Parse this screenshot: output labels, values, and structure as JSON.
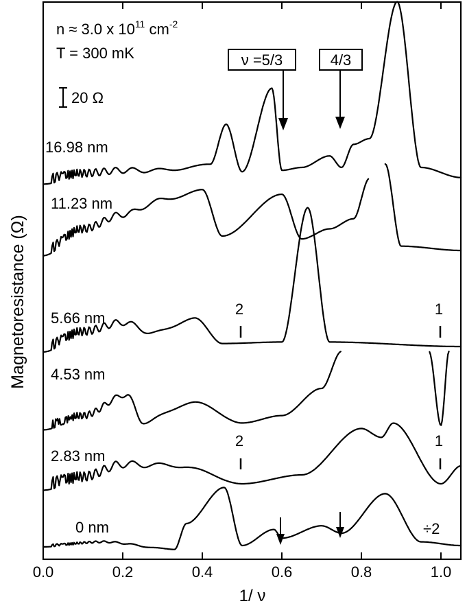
{
  "chart_data": {
    "type": "line",
    "xlabel": "1/ ν",
    "ylabel": "Magnetoresistance (Ω)",
    "xlim": [
      0.0,
      1.05
    ],
    "xticks": [
      "0.0",
      "0.2",
      "0.4",
      "0.6",
      "0.8",
      "1.0"
    ],
    "xtick_values": [
      0.0,
      0.2,
      0.4,
      0.6,
      0.8,
      1.0
    ],
    "annotations": {
      "density": "n ≈ 3.0 x 10",
      "density_exp": "11",
      "density_unit": " cm",
      "density_unit_exp": "-2",
      "temperature": "T = 300 mK",
      "scale_bar": "20 Ω",
      "nu53_box": "ν =5/3",
      "nu43_box": "4/3",
      "nu2_label": "2",
      "nu1_label": "1",
      "divide": "÷2"
    },
    "series": [
      {
        "name": "16.98 nm",
        "description": "offset trace, peaks at 0.46, 0.575 and large peak at 0.89; dips at 0.60 and 0.75",
        "x": [
          0.0,
          0.1,
          0.2,
          0.3,
          0.42,
          0.46,
          0.5,
          0.575,
          0.6,
          0.65,
          0.72,
          0.75,
          0.78,
          0.82,
          0.89,
          0.95,
          1.05
        ],
        "y": [
          0.2,
          0.6,
          0.8,
          0.8,
          1.2,
          4.0,
          0.7,
          6.5,
          0.8,
          1.0,
          1.8,
          1.0,
          2.6,
          3.0,
          12.5,
          1.0,
          0.3
        ]
      },
      {
        "name": "11.23 nm",
        "description": "broad oscillations up to 0.4, peak at 0.6, rising toward 0.82 (curve cut 0.82-0.86)",
        "x": [
          0.0,
          0.1,
          0.2,
          0.3,
          0.4,
          0.45,
          0.6,
          0.65,
          0.72,
          0.78,
          0.82,
          0.86,
          0.9,
          1.05
        ],
        "y": [
          0.0,
          1.5,
          2.5,
          3.5,
          4.2,
          1.0,
          3.9,
          0.8,
          1.5,
          2.2,
          5.0,
          6.0,
          0.3,
          0.0
        ]
      },
      {
        "name": "5.66 nm",
        "description": "oscillations, peak at 0.38 and very large peak at 0.665",
        "x": [
          0.0,
          0.1,
          0.2,
          0.28,
          0.38,
          0.45,
          0.6,
          0.665,
          0.72,
          1.05
        ],
        "y": [
          0.0,
          1.0,
          1.6,
          0.9,
          1.9,
          0.2,
          0.3,
          9.2,
          0.3,
          0.0
        ]
      },
      {
        "name": "4.53 nm",
        "description": "oscillations, peak at 0.21, 0.38, steep rise beyond 0.7 (cut), deep minimum near 1.0",
        "x": [
          0.0,
          0.1,
          0.21,
          0.25,
          0.38,
          0.5,
          0.6,
          0.7,
          0.75,
          0.97,
          1.0,
          1.02
        ],
        "y": [
          0.0,
          0.8,
          2.5,
          0.3,
          1.9,
          0.2,
          0.8,
          3.0,
          6.0,
          6.0,
          0.0,
          6.0
        ]
      },
      {
        "name": "2.83 nm",
        "description": "small oscillations, broad maxima at 0.8 and 0.88, minimum at 1.0",
        "x": [
          0.0,
          0.1,
          0.2,
          0.35,
          0.5,
          0.65,
          0.8,
          0.85,
          0.88,
          1.0,
          1.05
        ],
        "y": [
          0.0,
          0.4,
          1.1,
          1.0,
          0.0,
          0.5,
          3.1,
          2.6,
          3.4,
          0.0,
          1.0
        ]
      },
      {
        "name": "0 nm",
        "description": "divided by 2; peaks at 0.455 and 0.86, dips at 0.50 and 0.60/0.75 (arrows)",
        "x": [
          0.0,
          0.15,
          0.33,
          0.36,
          0.455,
          0.5,
          0.58,
          0.6,
          0.7,
          0.75,
          0.86,
          0.95,
          1.05
        ],
        "y": [
          0.0,
          0.3,
          -0.3,
          1.8,
          4.7,
          0.0,
          1.3,
          0.6,
          1.6,
          1.0,
          4.2,
          0.3,
          0.0
        ]
      }
    ]
  }
}
